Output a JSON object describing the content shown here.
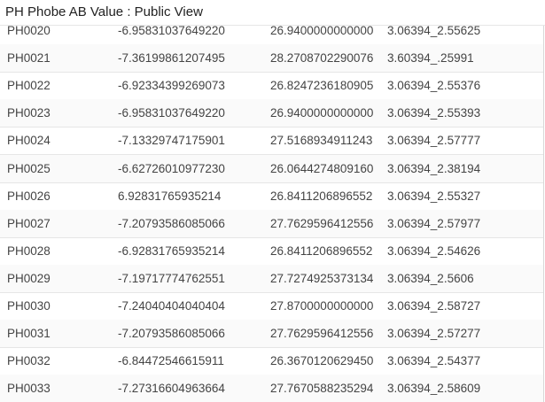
{
  "window": {
    "title": "PH Phobe AB Value : Public View"
  },
  "rows": [
    [
      "PH0020",
      "-6.95831037649220",
      "26.9400000000000",
      "3.06394_2.55625"
    ],
    [
      "PH0021",
      "-7.36199861207495",
      "28.2708702290076",
      "3.60394_.25991"
    ],
    [
      "PH0022",
      "-6.92334399269073",
      "26.8247236180905",
      "3.06394_2.55376"
    ],
    [
      "PH0023",
      "-6.95831037649220",
      "26.9400000000000",
      "3.06394_2.55393"
    ],
    [
      "PH0024",
      "-7.13329747175901",
      "27.5168934911243",
      "3.06394_2.57777"
    ],
    [
      "PH0025",
      "-6.62726010977230",
      "26.0644274809160",
      "3.06394_2.38194"
    ],
    [
      "PH0026",
      "6.92831765935214",
      "26.8411206896552",
      "3.06394_2.55327"
    ],
    [
      "PH0027",
      "-7.20793586085066",
      "27.7629596412556",
      "3.06394_2.57977"
    ],
    [
      "PH0028",
      "-6.92831765935214",
      "26.8411206896552",
      "3.06394_2.54626"
    ],
    [
      "PH0029",
      "-7.19717774762551",
      "27.7274925373134",
      "3.06394_2.5606"
    ],
    [
      "PH0030",
      "-7.24040404040404",
      "27.8700000000000",
      "3.06394_2.58727"
    ],
    [
      "PH0031",
      "-7.20793586085066",
      "27.7629596412556",
      "3.06394_2.57277"
    ],
    [
      "PH0032",
      "-6.84472546615911",
      "26.3670120629450",
      "3.06394_2.54377"
    ],
    [
      "PH0033",
      "-7.27316604963664",
      "27.7670588235294",
      "3.06394_2.58609"
    ]
  ]
}
